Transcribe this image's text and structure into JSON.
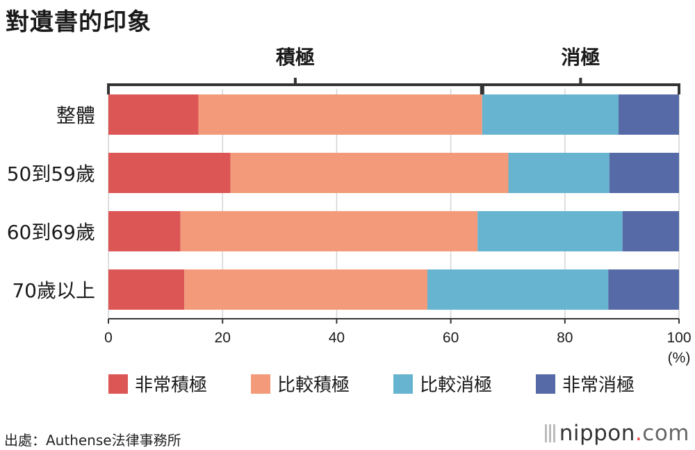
{
  "title": "對遺書的印象",
  "groups": [
    {
      "label": "積極",
      "from": 0,
      "to": 65.5
    },
    {
      "label": "消極",
      "from": 65.5,
      "to": 100
    }
  ],
  "colors": {
    "非常積極": "#dc5655",
    "比較積極": "#f29a7a",
    "比較消極": "#66b4cf",
    "非常消極": "#556aa6"
  },
  "chart_data": {
    "type": "bar",
    "orientation": "horizontal",
    "stacked": true,
    "categories": [
      "整體",
      "50到59歲",
      "60到69歲",
      "70歲以上"
    ],
    "series": [
      {
        "name": "非常積極",
        "values": [
          15.8,
          21.4,
          12.6,
          13.3
        ]
      },
      {
        "name": "比較積極",
        "values": [
          49.7,
          48.7,
          52.1,
          42.6
        ]
      },
      {
        "name": "比較消極",
        "values": [
          23.9,
          17.7,
          25.4,
          31.7
        ]
      },
      {
        "name": "非常消極",
        "values": [
          10.6,
          12.2,
          9.9,
          12.4
        ]
      }
    ],
    "xlim": [
      0,
      100
    ],
    "xticks": [
      0,
      20,
      40,
      60,
      80,
      100
    ],
    "xunit": "(%)",
    "grid": true,
    "legend": "bottom"
  },
  "source": "出處：Authense法律事務所",
  "brand": {
    "name": "nippon",
    "dot": ".",
    "suffix": "com"
  }
}
